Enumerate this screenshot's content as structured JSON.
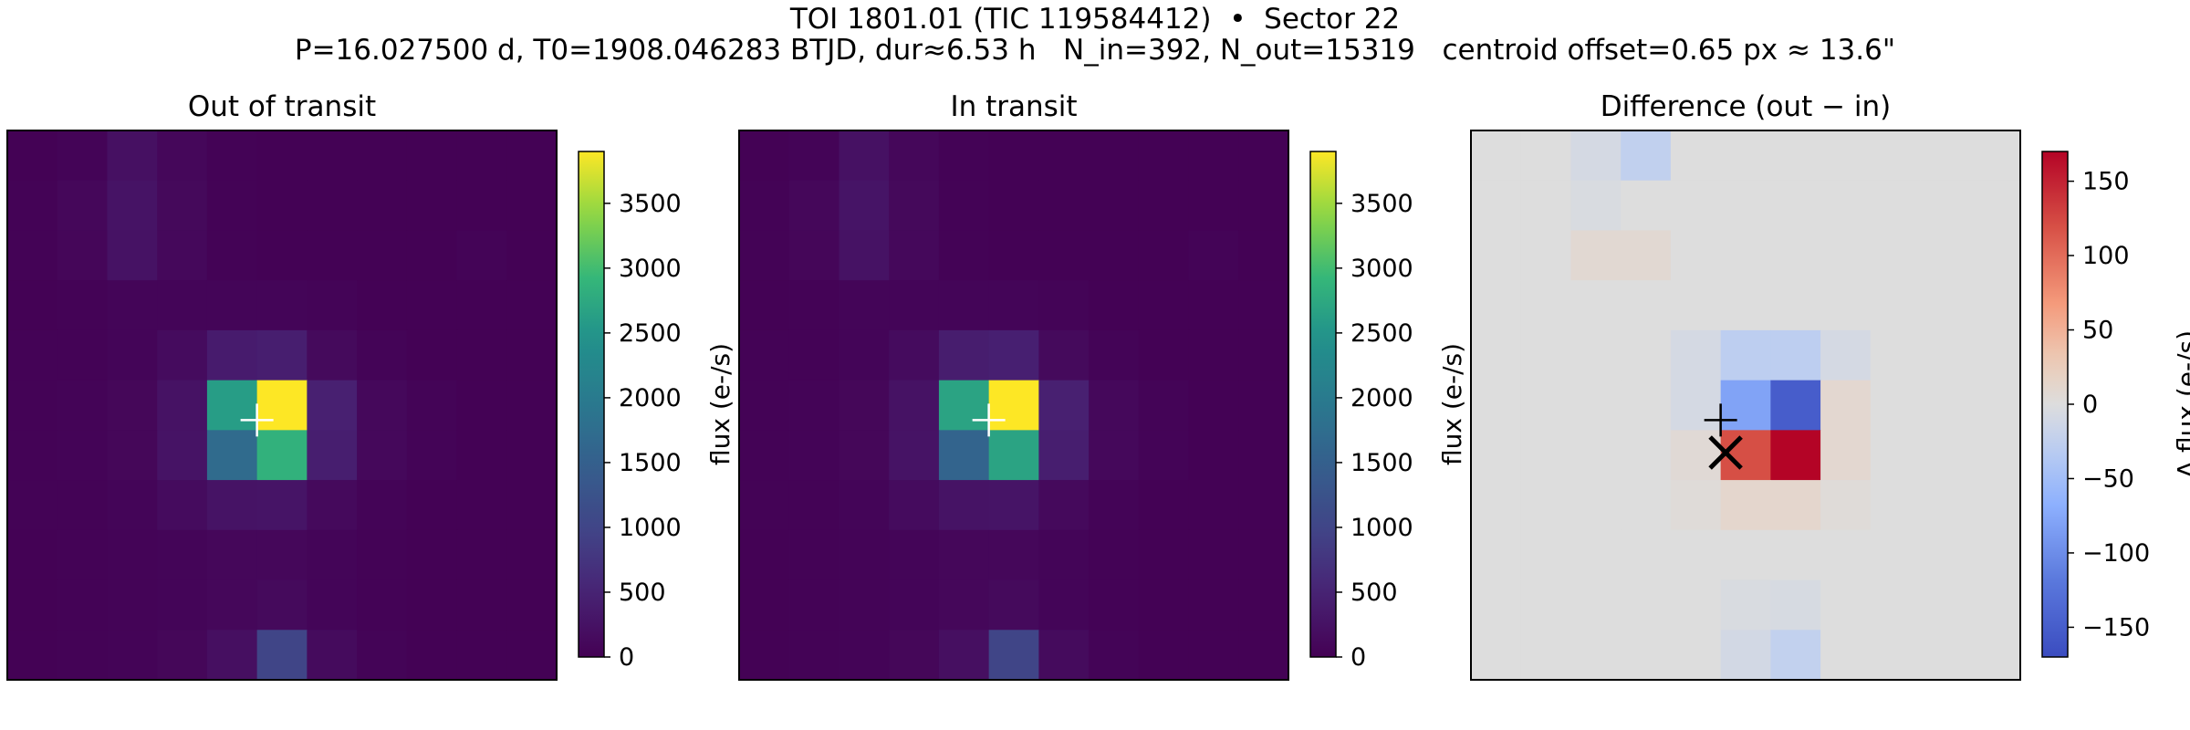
{
  "figure": {
    "title": "TOI 1801.01 (TIC 119584412)  •  Sector 22",
    "subtitle": "P=16.027500 d, T0=1908.046283 BTJD, dur≈6.53 h   N_in=392, N_out=15319   centroid offset=0.65 px ≈ 13.6\""
  },
  "chart_data": [
    {
      "type": "heatmap",
      "title": "Out of transit",
      "colormap": "viridis",
      "vmin": 0,
      "vmax": 3900,
      "colorbar_label": "flux (e-/s)",
      "colorbar_ticks": [
        0,
        500,
        1000,
        1500,
        2000,
        2500,
        3000,
        3500
      ],
      "marker": {
        "shape": "plus",
        "color": "#ffffff",
        "col": 5.0,
        "row": 5.8
      },
      "grid": [
        [
          20,
          40,
          220,
          90,
          25,
          15,
          10,
          10,
          10,
          10,
          10
        ],
        [
          25,
          90,
          260,
          110,
          30,
          15,
          10,
          10,
          10,
          10,
          10
        ],
        [
          25,
          70,
          240,
          100,
          30,
          15,
          10,
          10,
          10,
          40,
          20
        ],
        [
          20,
          30,
          60,
          60,
          60,
          60,
          40,
          20,
          10,
          10,
          10
        ],
        [
          25,
          30,
          60,
          150,
          380,
          420,
          130,
          40,
          20,
          10,
          10
        ],
        [
          30,
          40,
          80,
          250,
          2600,
          3900,
          450,
          100,
          40,
          15,
          10
        ],
        [
          30,
          40,
          80,
          260,
          1700,
          2850,
          420,
          100,
          40,
          15,
          10
        ],
        [
          25,
          30,
          60,
          150,
          260,
          280,
          120,
          40,
          20,
          10,
          10
        ],
        [
          20,
          25,
          40,
          60,
          90,
          90,
          60,
          30,
          15,
          10,
          10
        ],
        [
          20,
          25,
          40,
          60,
          90,
          130,
          60,
          30,
          15,
          10,
          10
        ],
        [
          20,
          25,
          40,
          80,
          200,
          1000,
          140,
          40,
          15,
          10,
          10
        ]
      ]
    },
    {
      "type": "heatmap",
      "title": "In transit",
      "colormap": "viridis",
      "vmin": 0,
      "vmax": 3900,
      "colorbar_label": "flux (e-/s)",
      "colorbar_ticks": [
        0,
        500,
        1000,
        1500,
        2000,
        2500,
        3000,
        3500
      ],
      "marker": {
        "shape": "plus",
        "color": "#ffffff",
        "col": 5.0,
        "row": 5.8
      },
      "grid": [
        [
          20,
          40,
          230,
          90,
          25,
          15,
          10,
          10,
          10,
          10,
          10
        ],
        [
          25,
          90,
          270,
          110,
          30,
          15,
          10,
          10,
          10,
          10,
          10
        ],
        [
          25,
          70,
          250,
          100,
          30,
          15,
          10,
          10,
          10,
          40,
          20
        ],
        [
          20,
          30,
          60,
          60,
          60,
          60,
          40,
          20,
          10,
          10,
          10
        ],
        [
          25,
          30,
          60,
          150,
          400,
          440,
          130,
          40,
          20,
          10,
          10
        ],
        [
          30,
          40,
          80,
          250,
          2680,
          3990,
          450,
          100,
          40,
          15,
          10
        ],
        [
          30,
          40,
          80,
          260,
          1580,
          2680,
          420,
          100,
          40,
          15,
          10
        ],
        [
          25,
          30,
          60,
          150,
          260,
          280,
          120,
          40,
          20,
          10,
          10
        ],
        [
          20,
          25,
          40,
          60,
          90,
          90,
          60,
          30,
          15,
          10,
          10
        ],
        [
          20,
          25,
          40,
          60,
          90,
          130,
          60,
          30,
          15,
          10,
          10
        ],
        [
          20,
          25,
          40,
          80,
          200,
          1000,
          140,
          40,
          15,
          10,
          10
        ]
      ]
    },
    {
      "type": "heatmap",
      "title": "Difference (out − in)",
      "colormap": "coolwarm",
      "vmin": -170,
      "vmax": 170,
      "colorbar_label": "Δ flux (e-/s)",
      "colorbar_ticks": [
        -150,
        -100,
        -50,
        0,
        50,
        100,
        150
      ],
      "markers": [
        {
          "shape": "plus",
          "color": "#000000",
          "col": 5.0,
          "row": 5.8
        },
        {
          "shape": "x",
          "color": "#000000",
          "col": 5.1,
          "row": 6.45
        }
      ],
      "grid": [
        [
          0,
          0,
          -8,
          -25,
          0,
          0,
          0,
          0,
          0,
          0,
          0
        ],
        [
          0,
          0,
          -4,
          0,
          0,
          0,
          0,
          0,
          0,
          0,
          0
        ],
        [
          0,
          0,
          8,
          8,
          0,
          0,
          0,
          0,
          0,
          0,
          0
        ],
        [
          0,
          0,
          0,
          0,
          0,
          0,
          0,
          0,
          0,
          0,
          0
        ],
        [
          0,
          0,
          0,
          0,
          -8,
          -28,
          -28,
          -8,
          0,
          0,
          0
        ],
        [
          0,
          0,
          0,
          0,
          -8,
          -80,
          -150,
          10,
          0,
          0,
          0
        ],
        [
          0,
          0,
          0,
          0,
          6,
          120,
          170,
          10,
          0,
          0,
          0
        ],
        [
          0,
          0,
          0,
          0,
          4,
          12,
          12,
          4,
          0,
          0,
          0
        ],
        [
          0,
          0,
          0,
          0,
          0,
          0,
          0,
          0,
          0,
          0,
          0
        ],
        [
          0,
          0,
          0,
          0,
          0,
          -4,
          -6,
          0,
          0,
          0,
          0
        ],
        [
          0,
          0,
          0,
          0,
          0,
          -10,
          -24,
          0,
          0,
          0,
          0
        ]
      ]
    }
  ]
}
